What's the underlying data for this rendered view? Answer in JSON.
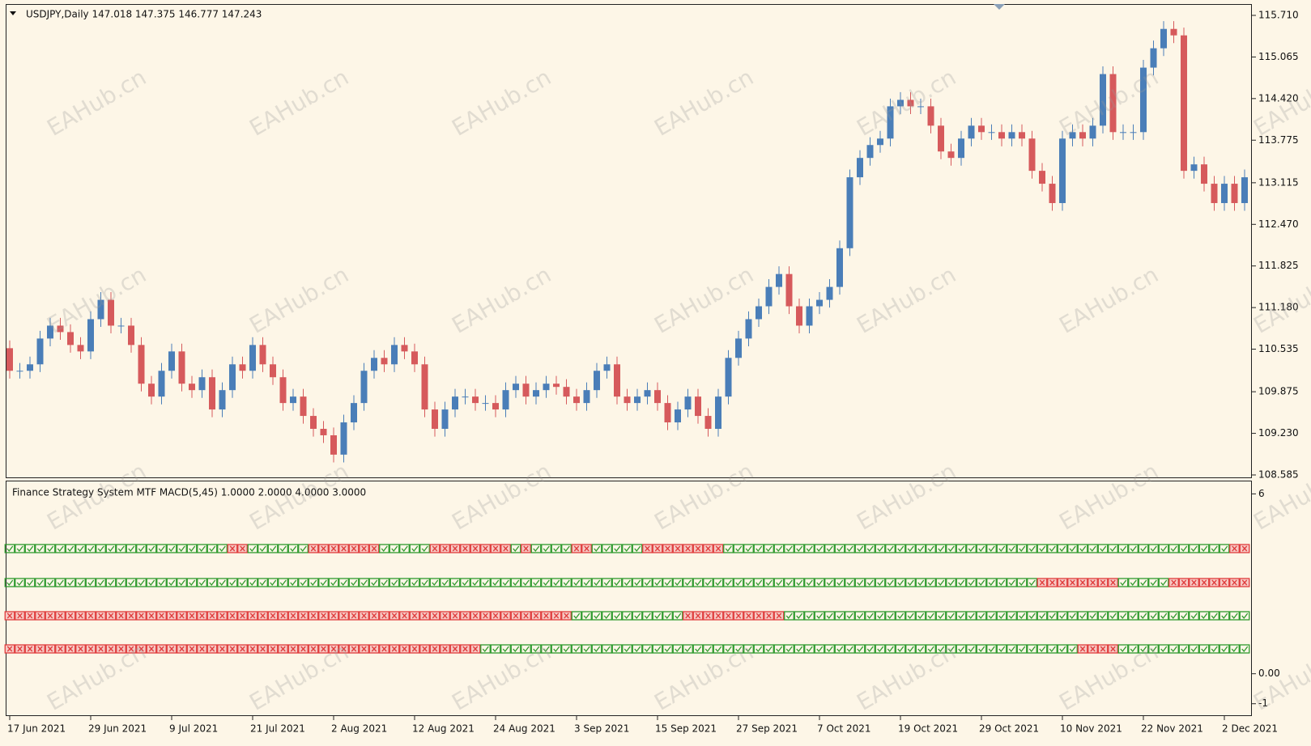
{
  "chart_data": [
    {
      "type": "candlestick",
      "title": "USDJPY,Daily  147.018 147.375 146.777 147.243",
      "up_color": "#4a7eb8",
      "down_color": "#d65a5c",
      "categories": [
        "17 Jun 2021",
        null,
        null,
        null,
        null,
        null,
        null,
        null,
        "29 Jun 2021",
        null,
        null,
        null,
        null,
        null,
        null,
        null,
        "9 Jul 2021",
        null,
        null,
        null,
        null,
        null,
        null,
        null,
        "21 Jul 2021",
        null,
        null,
        null,
        null,
        null,
        null,
        null,
        "2 Aug 2021",
        null,
        null,
        null,
        null,
        null,
        null,
        null,
        "12 Aug 2021",
        null,
        null,
        null,
        null,
        null,
        null,
        null,
        "24 Aug 2021",
        null,
        null,
        null,
        null,
        null,
        null,
        null,
        "3 Sep 2021",
        null,
        null,
        null,
        null,
        null,
        null,
        null,
        "15 Sep 2021",
        null,
        null,
        null,
        null,
        null,
        null,
        null,
        "27 Sep 2021",
        null,
        null,
        null,
        null,
        null,
        null,
        null,
        "7 Oct 2021",
        null,
        null,
        null,
        null,
        null,
        null,
        null,
        "19 Oct 2021",
        null,
        null,
        null,
        null,
        null,
        null,
        null,
        "29 Oct 2021",
        null,
        null,
        null,
        null,
        null,
        null,
        null,
        "10 Nov 2021",
        null,
        null,
        null,
        null,
        null,
        null,
        null,
        "22 Nov 2021",
        null,
        null,
        null,
        null,
        null,
        null,
        null,
        "2 Dec 2021",
        null,
        null
      ],
      "open": [
        110.55,
        110.2,
        110.2,
        110.3,
        110.7,
        110.9,
        110.8,
        110.6,
        110.5,
        111.0,
        111.3,
        110.9,
        110.9,
        110.6,
        110.0,
        109.8,
        110.2,
        110.5,
        110.0,
        109.9,
        110.1,
        109.6,
        109.9,
        110.3,
        110.2,
        110.6,
        110.3,
        110.1,
        109.7,
        109.8,
        109.5,
        109.3,
        109.2,
        108.9,
        109.4,
        109.7,
        110.2,
        110.4,
        110.3,
        110.6,
        110.5,
        110.3,
        109.6,
        109.3,
        109.6,
        109.8,
        109.8,
        109.7,
        109.7,
        109.6,
        109.9,
        110.0,
        109.8,
        109.9,
        110.0,
        109.95,
        109.8,
        109.7,
        109.9,
        110.2,
        110.3,
        109.8,
        109.7,
        109.8,
        109.9,
        109.7,
        109.4,
        109.6,
        109.8,
        109.5,
        109.3,
        109.8,
        110.4,
        110.7,
        111.0,
        111.2,
        111.5,
        111.7,
        111.2,
        110.9,
        111.2,
        111.3,
        111.5,
        112.1,
        113.2,
        113.5,
        113.7,
        113.8,
        114.3,
        114.4,
        114.3,
        114.3,
        114.0,
        113.6,
        113.5,
        113.8,
        114.0,
        113.9,
        113.9,
        113.8,
        113.9,
        113.8,
        113.3,
        113.1,
        112.8,
        113.8,
        113.9,
        113.8,
        114.0,
        114.8,
        113.9,
        113.9,
        113.9,
        114.9,
        115.2,
        115.5,
        115.4,
        113.3,
        113.4,
        113.1,
        112.8,
        113.1,
        112.8
      ],
      "high": [
        110.67,
        110.32,
        110.42,
        110.82,
        111.02,
        111.02,
        110.92,
        110.72,
        111.12,
        111.42,
        111.42,
        111.02,
        111.02,
        110.72,
        110.12,
        110.32,
        110.62,
        110.62,
        110.12,
        110.22,
        110.22,
        110.02,
        110.42,
        110.42,
        110.72,
        110.72,
        110.42,
        110.22,
        109.92,
        109.92,
        109.62,
        109.42,
        109.32,
        109.52,
        109.82,
        110.32,
        110.52,
        110.52,
        110.72,
        110.72,
        110.62,
        110.42,
        109.72,
        109.72,
        109.92,
        109.92,
        109.92,
        109.82,
        109.82,
        110.02,
        110.12,
        110.12,
        110.02,
        110.12,
        110.12,
        110.07,
        109.92,
        110.02,
        110.32,
        110.42,
        110.42,
        109.92,
        109.92,
        110.02,
        110.02,
        109.82,
        109.72,
        109.92,
        109.92,
        109.62,
        109.92,
        110.52,
        110.82,
        111.12,
        111.32,
        111.62,
        111.82,
        111.82,
        111.32,
        111.32,
        111.42,
        111.62,
        112.22,
        113.32,
        113.62,
        113.82,
        113.92,
        114.42,
        114.52,
        114.52,
        114.42,
        114.42,
        114.12,
        113.72,
        113.92,
        114.12,
        114.12,
        114.02,
        114.02,
        114.02,
        114.02,
        113.92,
        113.42,
        113.22,
        113.92,
        114.02,
        114.02,
        114.12,
        114.92,
        114.92,
        114.02,
        114.02,
        115.02,
        115.32,
        115.62,
        115.62,
        115.52,
        113.52,
        113.52,
        113.22,
        113.22,
        113.22,
        113.32
      ],
      "low": [
        110.08,
        110.08,
        110.08,
        110.18,
        110.58,
        110.68,
        110.48,
        110.38,
        110.38,
        110.88,
        110.78,
        110.78,
        110.48,
        109.88,
        109.68,
        109.68,
        110.08,
        109.88,
        109.78,
        109.78,
        109.48,
        109.48,
        109.78,
        110.08,
        110.08,
        110.18,
        109.98,
        109.58,
        109.58,
        109.38,
        109.18,
        109.08,
        108.78,
        108.78,
        109.28,
        109.58,
        110.08,
        110.18,
        110.18,
        110.38,
        110.18,
        109.48,
        109.18,
        109.18,
        109.48,
        109.68,
        109.58,
        109.58,
        109.48,
        109.48,
        109.78,
        109.68,
        109.68,
        109.78,
        109.83,
        109.68,
        109.58,
        109.58,
        109.78,
        110.08,
        109.68,
        109.58,
        109.58,
        109.68,
        109.58,
        109.28,
        109.28,
        109.48,
        109.38,
        109.18,
        109.18,
        109.68,
        110.28,
        110.58,
        110.88,
        111.08,
        111.38,
        111.08,
        110.78,
        110.78,
        111.08,
        111.18,
        111.38,
        111.98,
        113.08,
        113.38,
        113.58,
        113.68,
        114.18,
        114.18,
        114.18,
        113.88,
        113.48,
        113.38,
        113.38,
        113.68,
        113.78,
        113.78,
        113.68,
        113.68,
        113.68,
        113.18,
        112.98,
        112.68,
        112.68,
        113.68,
        113.68,
        113.68,
        113.88,
        113.78,
        113.78,
        113.78,
        113.78,
        114.78,
        115.08,
        115.28,
        113.18,
        113.18,
        112.98,
        112.68,
        112.68,
        112.68,
        112.68
      ],
      "close": [
        110.2,
        110.2,
        110.3,
        110.7,
        110.9,
        110.8,
        110.6,
        110.5,
        111.0,
        111.3,
        110.9,
        110.9,
        110.6,
        110.0,
        109.8,
        110.2,
        110.5,
        110.0,
        109.9,
        110.1,
        109.6,
        109.9,
        110.3,
        110.2,
        110.6,
        110.3,
        110.1,
        109.7,
        109.8,
        109.5,
        109.3,
        109.2,
        108.9,
        109.4,
        109.7,
        110.2,
        110.4,
        110.3,
        110.6,
        110.5,
        110.3,
        109.6,
        109.3,
        109.6,
        109.8,
        109.8,
        109.7,
        109.7,
        109.6,
        109.9,
        110.0,
        109.8,
        109.9,
        110.0,
        109.95,
        109.8,
        109.7,
        109.9,
        110.2,
        110.3,
        109.8,
        109.7,
        109.8,
        109.9,
        109.7,
        109.4,
        109.6,
        109.8,
        109.5,
        109.3,
        109.8,
        110.4,
        110.7,
        111.0,
        111.2,
        111.5,
        111.7,
        111.2,
        110.9,
        111.2,
        111.3,
        111.5,
        112.1,
        113.2,
        113.5,
        113.7,
        113.8,
        114.3,
        114.4,
        114.3,
        114.3,
        114.0,
        113.6,
        113.5,
        113.8,
        114.0,
        113.9,
        113.9,
        113.8,
        113.9,
        113.8,
        113.3,
        113.1,
        112.8,
        113.8,
        113.9,
        113.8,
        114.0,
        114.8,
        113.9,
        113.9,
        113.9,
        114.9,
        115.2,
        115.5,
        115.4,
        113.3,
        113.4,
        113.1,
        112.8,
        113.1,
        112.8,
        113.2
      ],
      "ylim": [
        108.585,
        115.71
      ],
      "yticks": [
        {
          "value": 115.71,
          "label": "115.710"
        },
        {
          "value": 115.065,
          "label": "115.065"
        },
        {
          "value": 114.42,
          "label": "114.420"
        },
        {
          "value": 113.775,
          "label": "113.775"
        },
        {
          "value": 113.115,
          "label": "113.115"
        },
        {
          "value": 112.47,
          "label": "112.470"
        },
        {
          "value": 111.825,
          "label": "111.825"
        },
        {
          "value": 111.18,
          "label": "111.180"
        },
        {
          "value": 110.535,
          "label": "110.535"
        },
        {
          "value": 109.875,
          "label": "109.875"
        },
        {
          "value": 109.23,
          "label": "109.230"
        },
        {
          "value": 108.585,
          "label": "108.585"
        }
      ]
    },
    {
      "type": "signal_grid",
      "title": "Finance Strategy System MTF MACD(5,45) 1.0000 2.0000 4.0000 3.0000",
      "check_color": "#2e9a2e",
      "cross_color": "#e03c3c",
      "ylim": [
        -1.25,
        6.2
      ],
      "yticks": [
        6,
        {
          "value": 0,
          "label": "0.00"
        },
        -1
      ],
      "rows": [
        {
          "values": [
            1,
            1,
            1,
            1,
            1,
            1,
            1,
            1,
            1,
            1,
            1,
            1,
            1,
            1,
            1,
            1,
            1,
            1,
            1,
            1,
            1,
            1,
            0,
            0,
            1,
            1,
            1,
            1,
            1,
            1,
            0,
            0,
            0,
            0,
            0,
            0,
            0,
            1,
            1,
            1,
            1,
            1,
            0,
            0,
            0,
            0,
            0,
            0,
            0,
            0,
            1,
            0,
            1,
            1,
            1,
            1,
            0,
            0,
            1,
            1,
            1,
            1,
            1,
            0,
            0,
            0,
            0,
            0,
            0,
            0,
            0,
            1,
            1,
            1,
            1,
            1,
            1,
            1,
            1,
            1,
            1,
            1,
            1,
            1,
            1,
            1,
            1,
            1,
            1,
            1,
            1,
            1,
            1,
            1,
            1,
            1,
            1,
            1,
            1,
            1,
            1,
            1,
            1,
            1,
            1,
            1,
            1,
            1,
            1,
            1,
            1,
            1,
            1,
            1,
            1,
            1,
            1,
            1,
            1,
            1,
            1,
            0,
            0
          ]
        },
        {
          "values": [
            1,
            1,
            1,
            1,
            1,
            1,
            1,
            1,
            1,
            1,
            1,
            1,
            1,
            1,
            1,
            1,
            1,
            1,
            1,
            1,
            1,
            1,
            1,
            1,
            1,
            1,
            1,
            1,
            1,
            1,
            1,
            1,
            1,
            1,
            1,
            1,
            1,
            1,
            1,
            1,
            1,
            1,
            1,
            1,
            1,
            1,
            1,
            1,
            1,
            1,
            1,
            1,
            1,
            1,
            1,
            1,
            1,
            1,
            1,
            1,
            1,
            1,
            1,
            1,
            1,
            1,
            1,
            1,
            1,
            1,
            1,
            1,
            1,
            1,
            1,
            1,
            1,
            1,
            1,
            1,
            1,
            1,
            1,
            1,
            1,
            1,
            1,
            1,
            1,
            1,
            1,
            1,
            1,
            1,
            1,
            1,
            1,
            1,
            1,
            1,
            1,
            1,
            0,
            0,
            0,
            0,
            0,
            0,
            0,
            0,
            1,
            1,
            1,
            1,
            1,
            0,
            0,
            0,
            0,
            0,
            0,
            0,
            0
          ]
        },
        {
          "values": [
            0,
            0,
            0,
            0,
            0,
            0,
            0,
            0,
            0,
            0,
            0,
            0,
            0,
            0,
            0,
            0,
            0,
            0,
            0,
            0,
            0,
            0,
            0,
            0,
            0,
            0,
            0,
            0,
            0,
            0,
            0,
            0,
            0,
            0,
            0,
            0,
            0,
            0,
            0,
            0,
            0,
            0,
            0,
            0,
            0,
            0,
            0,
            0,
            0,
            0,
            0,
            0,
            0,
            0,
            0,
            0,
            1,
            1,
            1,
            1,
            1,
            1,
            1,
            1,
            1,
            1,
            1,
            0,
            0,
            0,
            0,
            0,
            0,
            0,
            0,
            0,
            0,
            1,
            1,
            1,
            1,
            1,
            1,
            1,
            1,
            1,
            1,
            1,
            1,
            1,
            1,
            1,
            1,
            1,
            1,
            1,
            1,
            1,
            1,
            1,
            1,
            1,
            1,
            1,
            1,
            1,
            1,
            1,
            1,
            1,
            1,
            1,
            1,
            1,
            1,
            1,
            1,
            1,
            1,
            1,
            1,
            1,
            1
          ]
        },
        {
          "values": [
            0,
            0,
            0,
            0,
            0,
            0,
            0,
            0,
            0,
            0,
            0,
            0,
            0,
            0,
            0,
            0,
            0,
            0,
            0,
            0,
            0,
            0,
            0,
            0,
            0,
            0,
            0,
            0,
            0,
            0,
            0,
            0,
            0,
            0,
            0,
            0,
            0,
            0,
            0,
            0,
            0,
            0,
            0,
            0,
            0,
            0,
            0,
            1,
            1,
            1,
            1,
            1,
            1,
            1,
            1,
            1,
            1,
            1,
            1,
            1,
            1,
            1,
            1,
            1,
            1,
            1,
            1,
            1,
            1,
            1,
            1,
            1,
            1,
            1,
            1,
            1,
            1,
            1,
            1,
            1,
            1,
            1,
            1,
            1,
            1,
            1,
            1,
            1,
            1,
            1,
            1,
            1,
            1,
            1,
            1,
            1,
            1,
            1,
            1,
            1,
            1,
            1,
            1,
            1,
            1,
            1,
            0,
            0,
            0,
            0,
            1,
            1,
            1,
            1,
            1,
            1,
            1,
            1,
            1,
            1,
            1,
            1,
            1
          ]
        }
      ]
    }
  ],
  "watermark": "EAHub.cn"
}
